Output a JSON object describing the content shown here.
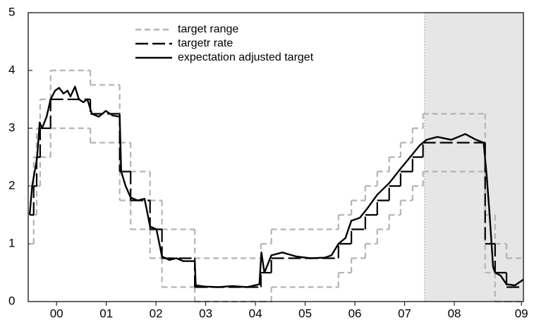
{
  "chart_data": {
    "type": "line",
    "xlim": [
      1999.93,
      2009.89
    ],
    "ylim": [
      0,
      5
    ],
    "yticks": [
      0,
      1,
      2,
      3,
      4,
      5
    ],
    "xticks": [
      {
        "value": 2000.5,
        "label": "00"
      },
      {
        "value": 2001.5,
        "label": "01"
      },
      {
        "value": 2002.5,
        "label": "02"
      },
      {
        "value": 2003.5,
        "label": "03"
      },
      {
        "value": 2004.5,
        "label": "04"
      },
      {
        "value": 2005.5,
        "label": "05"
      },
      {
        "value": 2006.5,
        "label": "06"
      },
      {
        "value": 2007.5,
        "label": "07"
      },
      {
        "value": 2008.5,
        "label": "08"
      },
      {
        "value": 2009.85,
        "label": "09"
      }
    ],
    "shaded_region": [
      2007.9,
      2009.89
    ],
    "shade_color": "#e6e6e6",
    "legend": "top-center",
    "series": [
      {
        "name": "target range",
        "color": "#b4b4b4",
        "dash": "8 5",
        "step": true,
        "x": [
          1999.96,
          2000.04,
          2000.1,
          2000.17,
          2000.38,
          2001.18,
          2001.77,
          2001.99,
          2002.38,
          2002.62,
          2003.28,
          2004.61,
          2004.82,
          2006.17,
          2006.43,
          2006.71,
          2006.95,
          2007.19,
          2007.42,
          2007.66,
          2007.87,
          2009.12,
          2009.32,
          2009.55,
          2009.89
        ],
        "values": [
          2,
          2.5,
          3,
          3.5,
          4,
          3.75,
          2.75,
          2.25,
          1.75,
          1.25,
          0.75,
          1,
          1.25,
          1.5,
          1.75,
          2,
          2.25,
          2.5,
          2.75,
          3,
          3.25,
          1.5,
          1,
          0.75,
          0.75
        ],
        "lower": [
          1,
          1.5,
          2,
          2.5,
          3,
          2.75,
          1.75,
          1.25,
          0.75,
          0.25,
          0,
          0,
          0.25,
          0.5,
          0.75,
          1,
          1.25,
          1.5,
          1.75,
          2,
          2.25,
          0.5,
          0,
          0,
          0
        ]
      },
      {
        "name": "targetr rate",
        "color": "#000000",
        "dash": "18 6",
        "step": true,
        "x": [
          1999.96,
          2000.04,
          2000.1,
          2000.17,
          2000.38,
          2001.18,
          2001.77,
          2001.99,
          2002.38,
          2002.62,
          2003.28,
          2004.61,
          2004.82,
          2006.17,
          2006.43,
          2006.71,
          2006.95,
          2007.19,
          2007.42,
          2007.66,
          2007.87,
          2009.12,
          2009.32,
          2009.55,
          2009.89
        ],
        "values": [
          1.5,
          2,
          2.5,
          3,
          3.5,
          3.25,
          2.25,
          1.75,
          1.25,
          0.75,
          0.25,
          0.5,
          0.75,
          1,
          1.25,
          1.5,
          1.75,
          2,
          2.25,
          2.5,
          2.75,
          1,
          0.5,
          0.25,
          0.25
        ]
      },
      {
        "name": "expectation adjusted target",
        "color": "#000000",
        "step": false,
        "x": [
          1999.96,
          2000.01,
          2000.07,
          2000.11,
          2000.16,
          2000.21,
          2000.3,
          2000.38,
          2000.47,
          2000.55,
          2000.64,
          2000.72,
          2000.78,
          2000.87,
          2000.95,
          2001.04,
          2001.12,
          2001.21,
          2001.35,
          2001.49,
          2001.63,
          2001.77,
          2001.8,
          2001.89,
          2001.99,
          2002.13,
          2002.27,
          2002.38,
          2002.51,
          2002.62,
          2002.77,
          2002.91,
          2003.05,
          2003.28,
          2003.3,
          2003.48,
          2003.76,
          2004.04,
          2004.33,
          2004.58,
          2004.62,
          2004.68,
          2004.82,
          2005.04,
          2005.32,
          2005.6,
          2005.89,
          2006.03,
          2006.17,
          2006.31,
          2006.43,
          2006.6,
          2006.74,
          2006.95,
          2007.19,
          2007.42,
          2007.66,
          2007.8,
          2007.94,
          2008.16,
          2008.44,
          2008.72,
          2008.94,
          2009.09,
          2009.15,
          2009.21,
          2009.28,
          2009.32,
          2009.43,
          2009.55,
          2009.72,
          2009.89
        ],
        "values": [
          1.5,
          2.0,
          2.3,
          2.5,
          3.1,
          3.0,
          3.2,
          3.5,
          3.65,
          3.7,
          3.6,
          3.65,
          3.55,
          3.72,
          3.5,
          3.45,
          3.5,
          3.25,
          3.2,
          3.3,
          3.22,
          3.2,
          2.25,
          2.0,
          1.8,
          1.75,
          1.78,
          1.3,
          1.25,
          0.78,
          0.72,
          0.75,
          0.7,
          0.7,
          0.28,
          0.26,
          0.25,
          0.27,
          0.25,
          0.3,
          0.85,
          0.5,
          0.8,
          0.85,
          0.78,
          0.75,
          0.76,
          0.8,
          1.0,
          1.1,
          1.4,
          1.45,
          1.6,
          1.85,
          2.05,
          2.3,
          2.55,
          2.7,
          2.8,
          2.85,
          2.8,
          2.9,
          2.8,
          2.75,
          2.2,
          1.5,
          0.6,
          0.5,
          0.45,
          0.3,
          0.28,
          0.38
        ]
      }
    ]
  }
}
